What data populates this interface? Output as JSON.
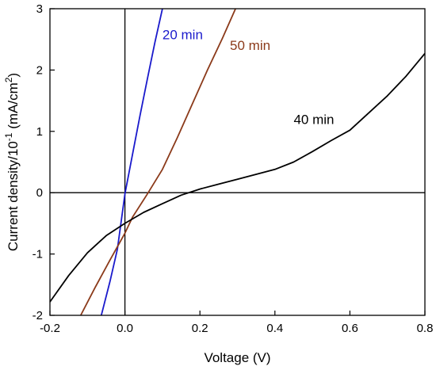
{
  "chart_data": {
    "type": "line",
    "title": "",
    "xlabel": "Voltage (V)",
    "ylabel": {
      "prefix": "Current density/10",
      "exp1": "-1",
      "mid": " (mA/cm",
      "exp2": "2",
      "suffix": ")"
    },
    "xlim": [
      -0.2,
      0.8
    ],
    "ylim": [
      -2,
      3
    ],
    "xticks": [
      -0.2,
      0.0,
      0.2,
      0.4,
      0.6,
      0.8
    ],
    "xtick_labels": [
      "-0.2",
      "0.0",
      "0.2",
      "0.4",
      "0.6",
      "0.8"
    ],
    "yticks": [
      -2,
      -1,
      0,
      1,
      2,
      3
    ],
    "ytick_labels": [
      "-2",
      "-1",
      "0",
      "1",
      "2",
      "3"
    ],
    "reference_lines": {
      "x": 0,
      "y": 0
    },
    "grid": false,
    "series": [
      {
        "name": "20 min",
        "color": "#1a1acc",
        "label_at": [
          0.1,
          2.5
        ],
        "x": [
          -0.063,
          -0.04,
          -0.02,
          0.0,
          0.02,
          0.04,
          0.06,
          0.08,
          0.1
        ],
        "y": [
          -2.0,
          -1.45,
          -0.92,
          -0.02,
          0.62,
          1.25,
          1.86,
          2.45,
          3.0
        ]
      },
      {
        "name": "50 min",
        "color": "#8b3a1a",
        "label_at": [
          0.28,
          2.33
        ],
        "x": [
          -0.118,
          -0.08,
          -0.04,
          0.0,
          0.02,
          0.06,
          0.1,
          0.14,
          0.18,
          0.22,
          0.26,
          0.295
        ],
        "y": [
          -2.0,
          -1.55,
          -1.1,
          -0.66,
          -0.4,
          -0.02,
          0.38,
          0.9,
          1.45,
          2.0,
          2.52,
          3.0
        ]
      },
      {
        "name": "40 min",
        "color": "#000000",
        "label_at": [
          0.45,
          1.12
        ],
        "x": [
          -0.2,
          -0.15,
          -0.1,
          -0.05,
          0.0,
          0.05,
          0.1,
          0.15,
          0.2,
          0.25,
          0.3,
          0.35,
          0.4,
          0.45,
          0.5,
          0.55,
          0.6,
          0.65,
          0.7,
          0.75,
          0.8
        ],
        "y": [
          -1.78,
          -1.35,
          -0.98,
          -0.7,
          -0.5,
          -0.32,
          -0.18,
          -0.04,
          0.06,
          0.14,
          0.22,
          0.3,
          0.38,
          0.5,
          0.67,
          0.85,
          1.02,
          1.3,
          1.58,
          1.9,
          2.27
        ]
      }
    ]
  }
}
